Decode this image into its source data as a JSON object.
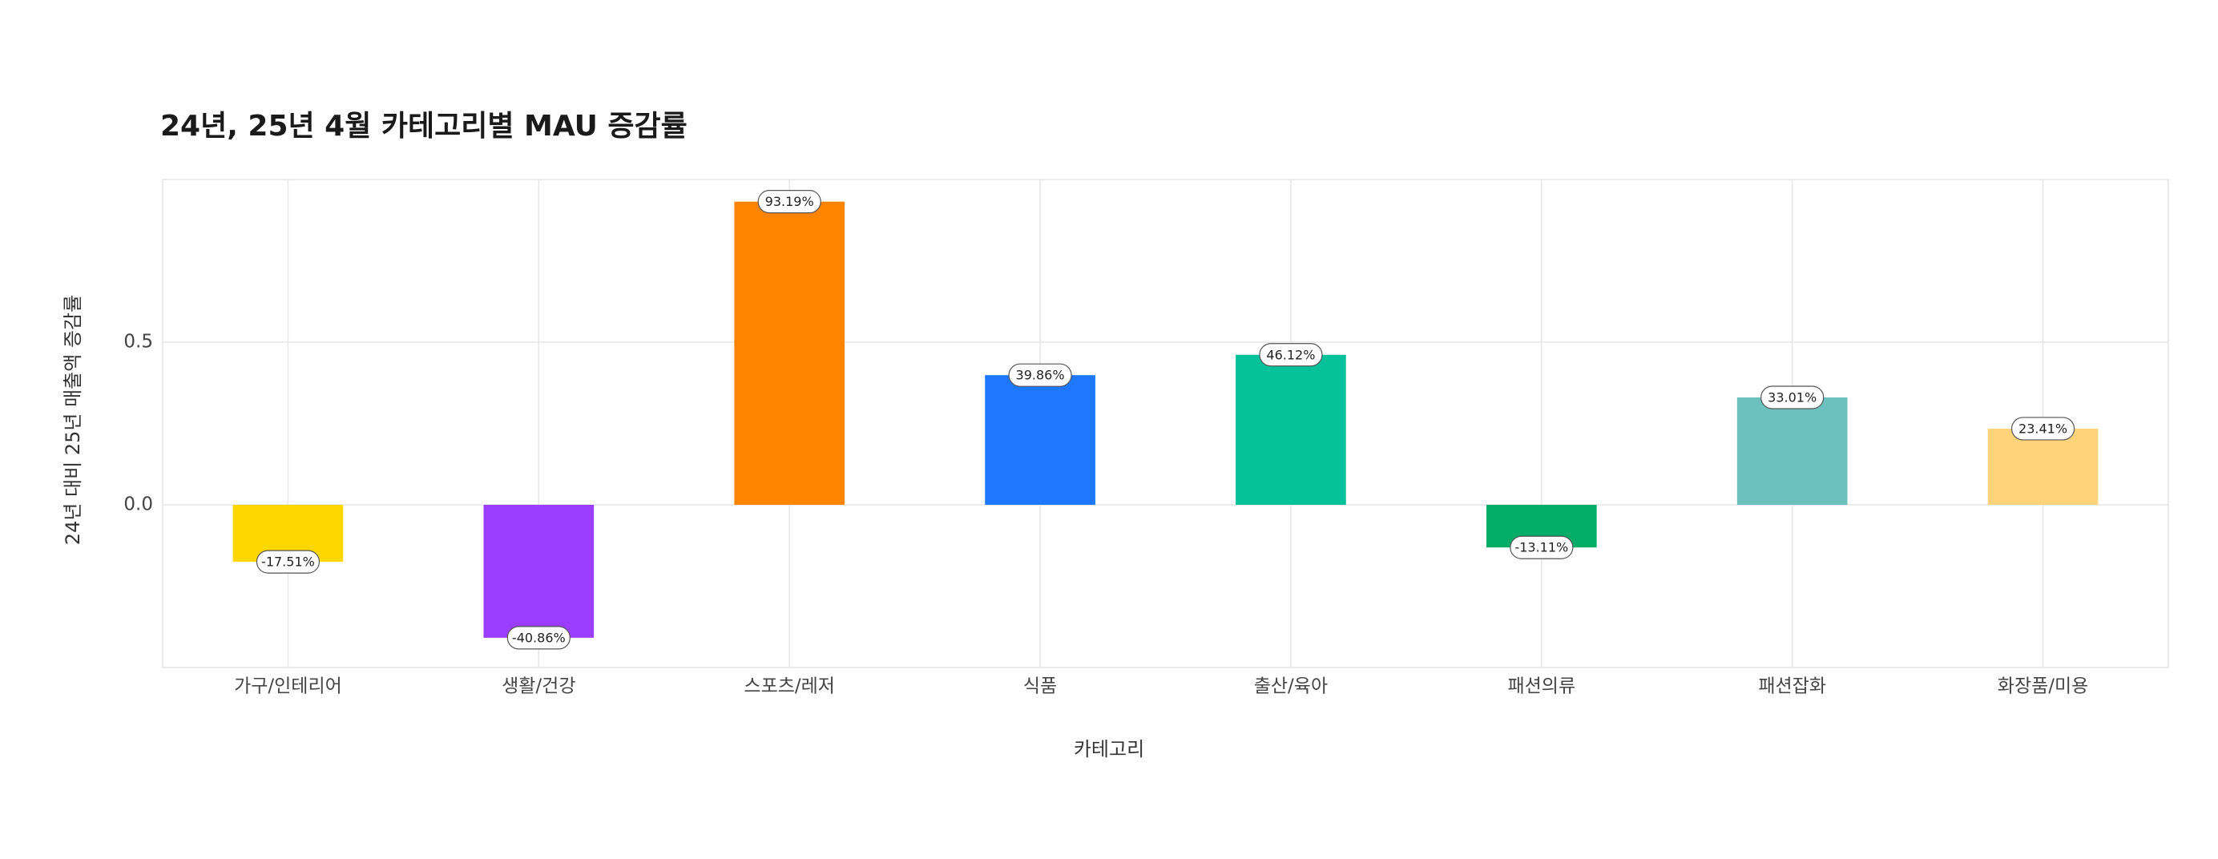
{
  "chart_data": {
    "type": "bar",
    "title": "24년, 25년 4월 카테고리별 MAU 증감률",
    "x_label": "카테고리",
    "y_label": "24년 대비 25년 매출액 증감률",
    "categories": [
      "가구/인테리어",
      "생활/건강",
      "스포츠/레저",
      "식품",
      "출산/육아",
      "패션의류",
      "패션잡화",
      "화장품/미용"
    ],
    "values": [
      -0.1751,
      -0.4086,
      0.9319,
      0.3986,
      0.4612,
      -0.1311,
      0.3301,
      0.2341
    ],
    "value_labels": [
      "-17.51%",
      "-40.86%",
      "93.19%",
      "39.86%",
      "46.12%",
      "-13.11%",
      "33.01%",
      "23.41%"
    ],
    "colors": [
      "#FFD700",
      "#9B3DFF",
      "#FF8500",
      "#1E78FF",
      "#06C29B",
      "#03AD68",
      "#6CC1BF",
      "#FFD37A"
    ],
    "ylim": [
      -0.5,
      1.0
    ],
    "yticks": [
      {
        "value": 0,
        "label": "0.0"
      },
      {
        "value": 0.5,
        "label": "0.5"
      }
    ],
    "grid": true
  }
}
